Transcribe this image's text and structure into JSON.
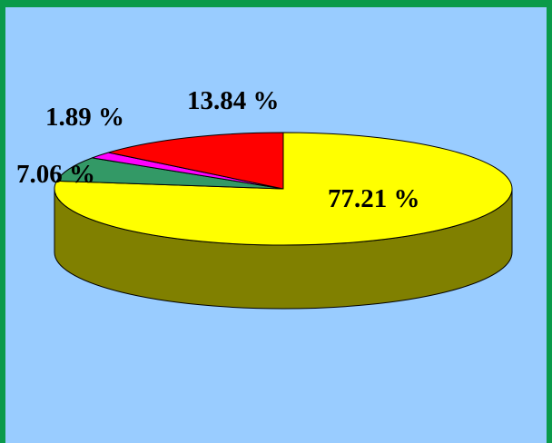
{
  "chart_data": {
    "type": "pie",
    "style": "3d",
    "title": "",
    "slices": [
      {
        "label": "77.21 %",
        "value": 77.21,
        "color": "#ffff00",
        "side_color": "#808000"
      },
      {
        "label": "7.06 %",
        "value": 7.06,
        "color": "#339966",
        "side_color": "#1f5c3d"
      },
      {
        "label": "1.89 %",
        "value": 1.89,
        "color": "#ff00ff",
        "side_color": "#800080"
      },
      {
        "label": "13.84 %",
        "value": 13.84,
        "color": "#ff0000",
        "side_color": "#800000"
      }
    ]
  },
  "colors": {
    "border": "#0a9a4a",
    "background": "#99ccff"
  }
}
